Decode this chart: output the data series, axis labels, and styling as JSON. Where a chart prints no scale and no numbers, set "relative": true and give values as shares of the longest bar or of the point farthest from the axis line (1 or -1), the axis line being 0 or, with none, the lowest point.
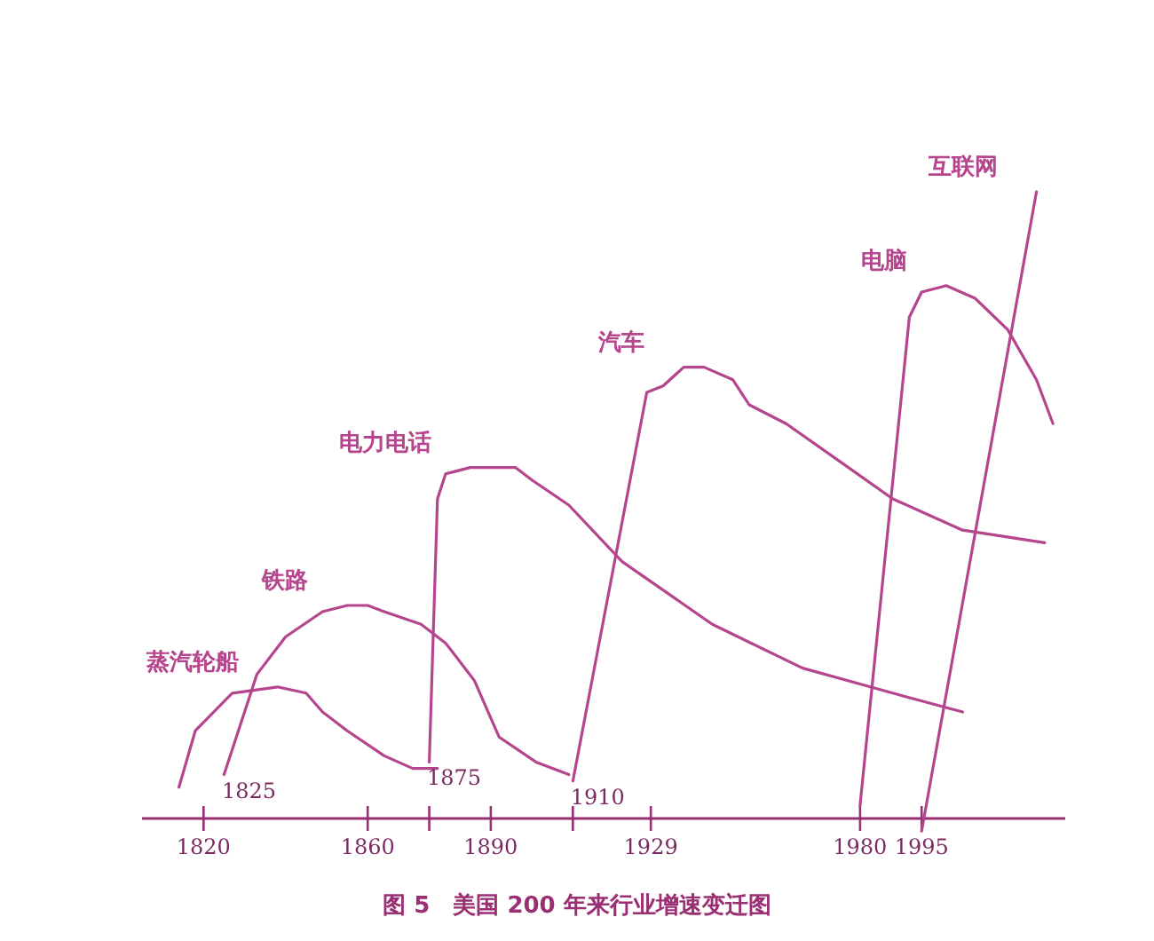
{
  "chart_data": {
    "type": "line",
    "title": "图 5　美国 200 年来行业增速变迁图",
    "relative": true,
    "xlim": [
      1805,
      2030
    ],
    "xticks": [
      1820,
      1860,
      {
        "value": 1875,
        "label": null
      },
      1890,
      {
        "value": 1910,
        "label": null
      },
      1929,
      1980,
      1995
    ],
    "annotations": [
      {
        "text": "1825",
        "x": 1825,
        "y": 0.07
      },
      {
        "text": "1875",
        "x": 1875,
        "y": 0.09
      },
      {
        "text": "1910",
        "x": 1910,
        "y": 0.06
      }
    ],
    "series": [
      {
        "name": "蒸汽轮船",
        "color": "#b5458c",
        "x": [
          1814,
          1818,
          1827,
          1838,
          1845,
          1849,
          1855,
          1864,
          1871,
          1877
        ],
        "values": [
          0.05,
          0.14,
          0.2,
          0.21,
          0.2,
          0.17,
          0.14,
          0.1,
          0.08,
          0.08
        ]
      },
      {
        "name": "铁路",
        "color": "#b5458c",
        "x": [
          1825,
          1833,
          1840,
          1849,
          1855,
          1860,
          1864,
          1873,
          1879,
          1886,
          1892,
          1901,
          1909
        ],
        "values": [
          0.07,
          0.23,
          0.29,
          0.33,
          0.34,
          0.34,
          0.33,
          0.31,
          0.28,
          0.22,
          0.13,
          0.09,
          0.07
        ]
      },
      {
        "name": "电力电话",
        "color": "#b5458c",
        "x": [
          1875,
          1877,
          1879,
          1885,
          1896,
          1900,
          1909,
          1922,
          1944,
          1966,
          1988,
          2005
        ],
        "values": [
          0.09,
          0.51,
          0.55,
          0.56,
          0.56,
          0.54,
          0.5,
          0.41,
          0.31,
          0.24,
          0.2,
          0.17
        ]
      },
      {
        "name": "汽车",
        "color": "#b5458c",
        "x": [
          1910,
          1928,
          1932,
          1937,
          1942,
          1949,
          1953,
          1962,
          1975,
          1988,
          2005,
          2025
        ],
        "values": [
          0.06,
          0.68,
          0.69,
          0.72,
          0.72,
          0.7,
          0.66,
          0.63,
          0.57,
          0.51,
          0.46,
          0.44
        ]
      },
      {
        "name": "电脑",
        "color": "#b5458c",
        "x": [
          1980,
          1992,
          1995,
          2001,
          2008,
          2016,
          2023,
          2027
        ],
        "values": [
          0.02,
          0.8,
          0.84,
          0.85,
          0.83,
          0.78,
          0.7,
          0.63
        ]
      },
      {
        "name": "互联网",
        "color": "#b5458c",
        "x": [
          1995,
          2023
        ],
        "values": [
          -0.02,
          1.0
        ]
      }
    ]
  }
}
